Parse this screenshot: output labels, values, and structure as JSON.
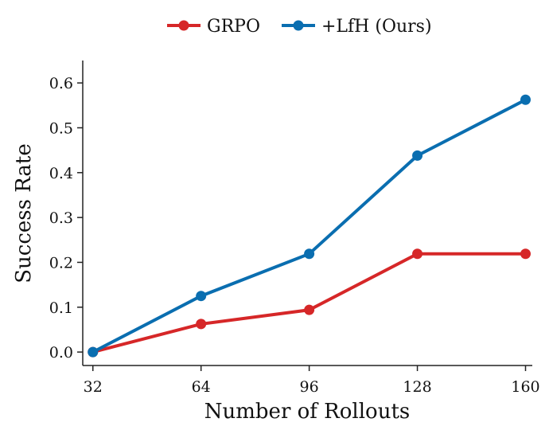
{
  "chart_data": {
    "type": "line",
    "title": "",
    "xlabel": "Number of Rollouts",
    "ylabel": "Success Rate",
    "x": [
      32,
      64,
      96,
      128,
      160
    ],
    "x_tick_labels": [
      "32",
      "64",
      "96",
      "128",
      "160"
    ],
    "y_tick_values": [
      0.0,
      0.1,
      0.2,
      0.3,
      0.4,
      0.5,
      0.6
    ],
    "y_tick_labels": [
      "0.0",
      "0.1",
      "0.2",
      "0.3",
      "0.4",
      "0.5",
      "0.6"
    ],
    "xlim": [
      29,
      162
    ],
    "ylim": [
      -0.03,
      0.65
    ],
    "grid": false,
    "legend_position": "top-center",
    "series": [
      {
        "name": "GRPO",
        "color": "#d62728",
        "values": [
          0.0,
          0.0625,
          0.094,
          0.219,
          0.219
        ]
      },
      {
        "name": "+LfH (Ours)",
        "color": "#0a6eb0",
        "values": [
          0.0,
          0.125,
          0.219,
          0.438,
          0.5625
        ]
      }
    ]
  }
}
